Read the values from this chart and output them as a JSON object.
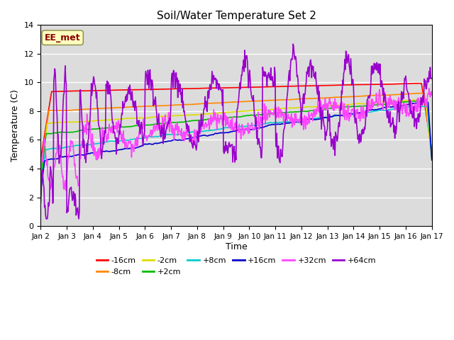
{
  "title": "Soil/Water Temperature Set 2",
  "xlabel": "Time",
  "ylabel": "Temperature (C)",
  "ylim": [
    0,
    14
  ],
  "xlim": [
    0,
    15
  ],
  "yticks": [
    0,
    2,
    4,
    6,
    8,
    10,
    12,
    14
  ],
  "xtick_labels": [
    "Jan 2",
    "Jan 3",
    "Jan 4",
    "Jan 5",
    "Jan 6",
    "Jan 7",
    "Jan 8",
    "Jan 9",
    "Jan 10",
    "Jan 11",
    "Jan 12",
    "Jan 13",
    "Jan 14",
    "Jan 15",
    "Jan 16",
    "Jan 17"
  ],
  "annotation_text": "EE_met",
  "annotation_color": "#8B0000",
  "annotation_bg": "#FFFFC0",
  "series_colors": {
    "-16cm": "#FF0000",
    "-8cm": "#FF8800",
    "-2cm": "#DDDD00",
    "+2cm": "#00BB00",
    "+8cm": "#00CCCC",
    "+16cm": "#0000CC",
    "+32cm": "#FF44FF",
    "+64cm": "#9900CC"
  },
  "background_color": "#DCDCDC",
  "plot_bg_color": "#DCDCDC",
  "grid_color": "#FFFFFF",
  "figsize": [
    6.4,
    4.8
  ],
  "dpi": 100
}
